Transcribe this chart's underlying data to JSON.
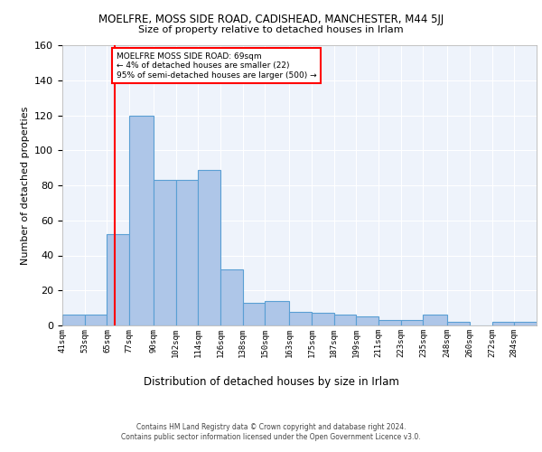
{
  "title1": "MOELFRE, MOSS SIDE ROAD, CADISHEAD, MANCHESTER, M44 5JJ",
  "title2": "Size of property relative to detached houses in Irlam",
  "xlabel": "Distribution of detached houses by size in Irlam",
  "ylabel": "Number of detached properties",
  "bin_edges": [
    41,
    53,
    65,
    77,
    90,
    102,
    114,
    126,
    138,
    150,
    163,
    175,
    187,
    199,
    211,
    223,
    235,
    248,
    260,
    272,
    284
  ],
  "bar_heights": [
    6,
    6,
    52,
    120,
    83,
    83,
    89,
    32,
    13,
    14,
    8,
    7,
    6,
    5,
    3,
    3,
    6,
    2,
    0,
    2,
    2
  ],
  "bar_color": "#aec6e8",
  "bar_edge_color": "#5a9fd4",
  "red_line_x": 69,
  "annotation_text": "MOELFRE MOSS SIDE ROAD: 69sqm\n← 4% of detached houses are smaller (22)\n95% of semi-detached houses are larger (500) →",
  "annotation_box_color": "white",
  "annotation_box_edge": "red",
  "ylim": [
    0,
    160
  ],
  "yticks": [
    0,
    20,
    40,
    60,
    80,
    100,
    120,
    140,
    160
  ],
  "tick_labels": [
    "41sqm",
    "53sqm",
    "65sqm",
    "77sqm",
    "90sqm",
    "102sqm",
    "114sqm",
    "126sqm",
    "138sqm",
    "150sqm",
    "163sqm",
    "175sqm",
    "187sqm",
    "199sqm",
    "211sqm",
    "223sqm",
    "235sqm",
    "248sqm",
    "260sqm",
    "272sqm",
    "284sqm"
  ],
  "footer1": "Contains HM Land Registry data © Crown copyright and database right 2024.",
  "footer2": "Contains public sector information licensed under the Open Government Licence v3.0.",
  "bg_color": "#eef3fb",
  "grid_color": "#ffffff"
}
